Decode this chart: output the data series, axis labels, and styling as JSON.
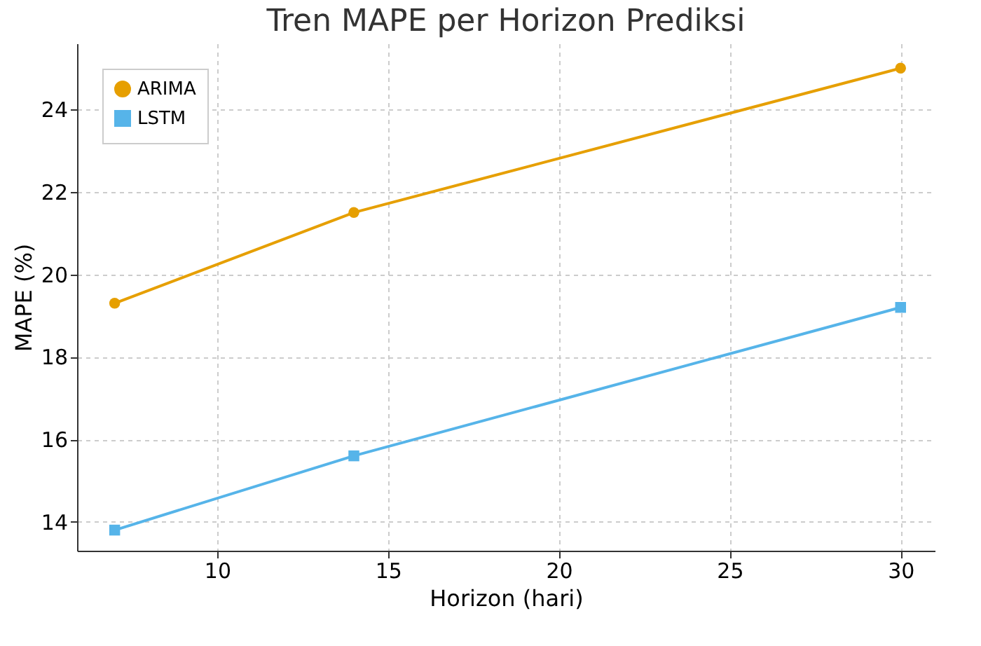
{
  "chart_data": {
    "type": "line",
    "title": "Tren MAPE per Horizon Prediksi",
    "xlabel": "Horizon (hari)",
    "ylabel": "MAPE (%)",
    "x": [
      7,
      14,
      30
    ],
    "series": [
      {
        "name": "ARIMA",
        "color": "#e69f00",
        "marker": "circle",
        "values": [
          19.3,
          21.5,
          25.0
        ]
      },
      {
        "name": "LSTM",
        "color": "#56b4e9",
        "marker": "square",
        "values": [
          13.8,
          15.6,
          19.2
        ]
      }
    ],
    "xlim": [
      5.9,
      31
    ],
    "xticks": [
      10,
      15,
      20,
      25,
      30
    ],
    "ylim": [
      13.3,
      25.6
    ],
    "yticks": [
      14,
      16,
      18,
      20,
      22,
      24
    ],
    "grid": true,
    "legend": "top left",
    "line_style": "solid"
  }
}
